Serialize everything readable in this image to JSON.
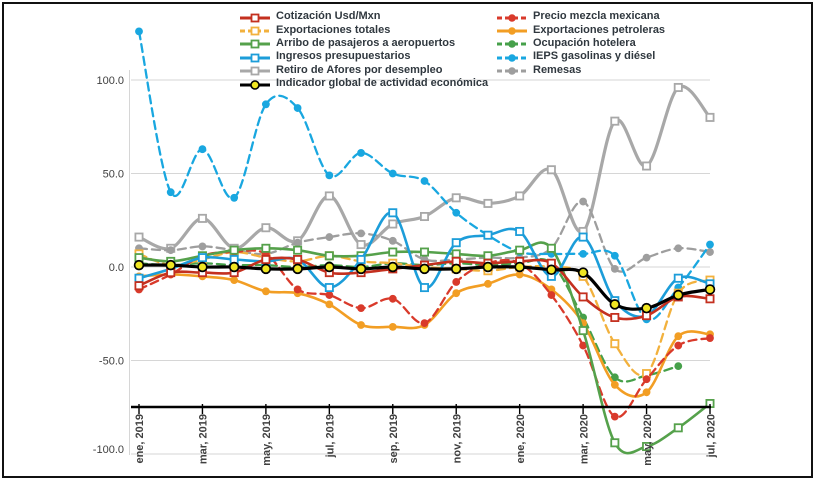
{
  "chart_data": {
    "type": "line",
    "title": "",
    "xlabel": "",
    "ylabel": "",
    "ylim": [
      -100,
      135
    ],
    "yticks": [
      100,
      50,
      0,
      -50,
      -100
    ],
    "ytick_labels": [
      "100.0",
      "50.0",
      "0.0",
      "-50.0",
      "-100.0"
    ],
    "x_tick_labels": [
      "ene, 2019",
      "mar, 2019",
      "may, 2019",
      "jul, 2019",
      "sep, 2019",
      "nov, 2019",
      "ene, 2020",
      "mar, 2020",
      "may, 2020",
      "jul, 2020"
    ],
    "months": [
      "ene, 2019",
      "feb, 2019",
      "mar, 2019",
      "abr, 2019",
      "may, 2019",
      "jun, 2019",
      "jul, 2019",
      "ago, 2019",
      "sep, 2019",
      "oct, 2019",
      "nov, 2019",
      "dic, 2019",
      "ene, 2020",
      "feb, 2020",
      "mar, 2020",
      "abr, 2020",
      "may, 2020",
      "jun, 2020",
      "jul, 2020"
    ],
    "grid": true,
    "legend_position": "top",
    "series": [
      {
        "id": "cotizacion",
        "label": "Cotización Usd/Mxn",
        "color": "#C4301F",
        "dash": false,
        "marker": "square",
        "values": [
          -10,
          -3,
          -3,
          -3,
          4,
          4,
          -3,
          -3,
          -1,
          1,
          3,
          2,
          3,
          2,
          -16,
          -27,
          -26,
          -16,
          -17
        ]
      },
      {
        "id": "exp_totales",
        "label": "Exportaciones totales",
        "color": "#F2B13D",
        "dash": true,
        "marker": "square",
        "values": [
          7,
          1,
          4,
          8,
          5,
          3,
          6,
          3,
          2,
          0,
          -1,
          -2,
          0,
          0,
          -5,
          -41,
          -57,
          -14,
          -7
        ]
      },
      {
        "id": "arribo",
        "label": "Arribo de pasajeros a aeropuertos",
        "color": "#55A14B",
        "dash": false,
        "marker": "square",
        "values": [
          5,
          3,
          6,
          9,
          10,
          9,
          6,
          6,
          8,
          8,
          7,
          6,
          9,
          10,
          -34,
          -94,
          -96,
          -86,
          -73
        ]
      },
      {
        "id": "ingresos",
        "label": "Ingresos presupuestarios",
        "color": "#1C9DD9",
        "dash": false,
        "marker": "square",
        "values": [
          -6,
          -1,
          5,
          4,
          3,
          4,
          -11,
          4,
          29,
          -11,
          13,
          17,
          19,
          -5,
          16,
          -18,
          -26,
          -6,
          -9
        ]
      },
      {
        "id": "afores",
        "label": "Retiro de Afores por desempleo",
        "color": "#A8A8A8",
        "dash": false,
        "marker": "square",
        "values": [
          16,
          10,
          26,
          10,
          21,
          14,
          38,
          12,
          23,
          27,
          37,
          34,
          38,
          52,
          19,
          78,
          54,
          96,
          80
        ]
      },
      {
        "id": "igae",
        "label": "Indicador global de actividad económica",
        "color": "#000000",
        "dash": false,
        "marker": "circle-yellow",
        "marker_fill": "#F0E622",
        "values": [
          1,
          1,
          0,
          0,
          -1,
          -1,
          0,
          -1,
          0,
          -1,
          -1,
          0,
          0,
          -1.5,
          -3,
          -20,
          -22,
          -15,
          -12
        ]
      },
      {
        "id": "mezcla",
        "label": "Precio mezcla mexicana",
        "color": "#D93A2B",
        "dash": true,
        "marker": "circle",
        "values": [
          -12,
          -4,
          6,
          8,
          7,
          -12,
          -15,
          -22,
          -17,
          -30,
          -8,
          2,
          2,
          -15,
          -42,
          -80,
          -60,
          -42,
          -38
        ]
      },
      {
        "id": "exp_petroleras",
        "label": "Exportaciones petroleras",
        "color": "#F29E24",
        "dash": false,
        "marker": "circle",
        "values": [
          -5,
          -4,
          -5,
          -7,
          -13,
          -14,
          -20,
          -31,
          -32,
          -31,
          -14,
          -9,
          -4,
          -12,
          -30,
          -63,
          -67,
          -37,
          -36
        ]
      },
      {
        "id": "ocupacion",
        "label": "Ocupación hotelera",
        "color": "#46A04A",
        "dash": true,
        "marker": "circle",
        "values": [
          2,
          1,
          2,
          1,
          1,
          0,
          1,
          0,
          2,
          1,
          2,
          1,
          2,
          2,
          -27,
          -59,
          -58,
          -53,
          null
        ]
      },
      {
        "id": "ieps",
        "label": "IEPS gasolinas y diésel",
        "color": "#19A7E0",
        "dash": true,
        "marker": "circle",
        "values": [
          126,
          40,
          63,
          37,
          87,
          85,
          49,
          61,
          50,
          46,
          29,
          17,
          8,
          7,
          7,
          6,
          -28,
          -11,
          12
        ]
      },
      {
        "id": "remesas",
        "label": "Remesas",
        "color": "#9E9E9E",
        "dash": true,
        "marker": "circle",
        "values": [
          10,
          9,
          11,
          9,
          7,
          13,
          16,
          18,
          14,
          4,
          4,
          5,
          5,
          10,
          35,
          -1,
          5,
          10,
          8
        ]
      }
    ]
  },
  "legend": {
    "left_ids": [
      "cotizacion",
      "exp_totales",
      "arribo",
      "ingresos",
      "afores",
      "igae"
    ],
    "right_ids": [
      "mezcla",
      "exp_petroleras",
      "ocupacion",
      "ieps",
      "remesas"
    ]
  },
  "colors": {
    "grid": "#D6D6D6",
    "axis": "#000000",
    "tick_text": "#3F3F3F",
    "legend_text": "#30383F",
    "background": "#FFFFFF",
    "border": "#111111"
  }
}
